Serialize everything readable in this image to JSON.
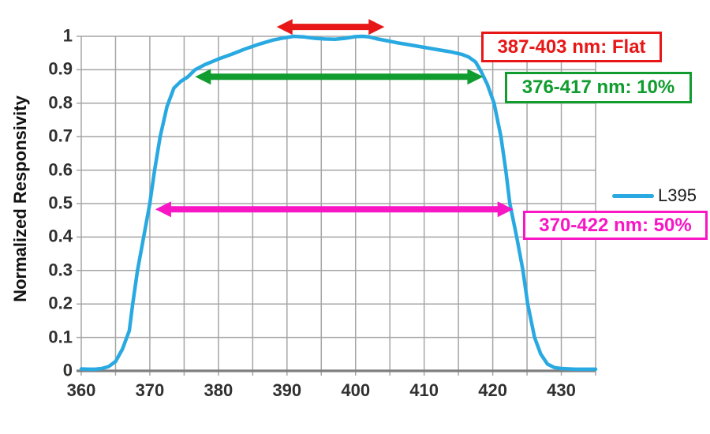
{
  "chart_data": {
    "type": "line",
    "title": "",
    "xlabel": "",
    "ylabel": "Normalized Responsivity",
    "xlim": [
      360,
      435
    ],
    "ylim": [
      0,
      1
    ],
    "grid": true,
    "x_grid_step": 5,
    "y_grid_step": 0.1,
    "x_ticks": [
      "360",
      "370",
      "380",
      "390",
      "400",
      "410",
      "420",
      "430"
    ],
    "y_ticks": [
      "1",
      "0.9",
      "0.8",
      "0.7",
      "0.6",
      "0.5",
      "0.4",
      "0.3",
      "0.2",
      "0.1",
      "0"
    ],
    "legend_position": "right-middle",
    "colors": {
      "grid": "#A5A5A5",
      "axis": "#7F7F7F",
      "background": "#FFFFFF",
      "tick_text": "#303030"
    },
    "series": [
      {
        "name": "L395",
        "color": "#29A9E1",
        "x": [
          360,
          361,
          362,
          363,
          364,
          365,
          366,
          367,
          367.5,
          368.2,
          369.1,
          370,
          370.7,
          371.5,
          372.5,
          373.5,
          374.5,
          375.5,
          376.6,
          378,
          380,
          382,
          384,
          386,
          388,
          389.5,
          391,
          392.5,
          394,
          395.5,
          397,
          398.5,
          400,
          401,
          402,
          403,
          404.5,
          406,
          408,
          410,
          412,
          414,
          415.5,
          416.5,
          417.5,
          418.3,
          419.2,
          420.2,
          421.2,
          421.9,
          422.5,
          423.5,
          424.4,
          425.1,
          426.1,
          427,
          428,
          429,
          430,
          432,
          435
        ],
        "y": [
          0.006,
          0.005,
          0.005,
          0.007,
          0.013,
          0.028,
          0.065,
          0.12,
          0.2,
          0.3,
          0.4,
          0.5,
          0.6,
          0.7,
          0.79,
          0.845,
          0.865,
          0.878,
          0.9,
          0.915,
          0.932,
          0.947,
          0.963,
          0.977,
          0.989,
          0.995,
          1.0,
          0.998,
          0.994,
          0.992,
          0.991,
          0.994,
          0.999,
          1.0,
          0.998,
          0.993,
          0.987,
          0.981,
          0.974,
          0.967,
          0.96,
          0.953,
          0.946,
          0.938,
          0.923,
          0.895,
          0.857,
          0.8,
          0.7,
          0.6,
          0.5,
          0.4,
          0.3,
          0.2,
          0.1,
          0.05,
          0.02,
          0.01,
          0.007,
          0.005,
          0.005
        ]
      }
    ],
    "annotations": [
      {
        "label": "387-403 nm: Flat",
        "range_nm": [
          387,
          403
        ],
        "arrow_x1": 388.5,
        "arrow_x2": 404.2,
        "arrow_y": 1.028,
        "color": "#E81717"
      },
      {
        "label": "376-417 nm: 10%",
        "range_nm": [
          376,
          417
        ],
        "arrow_x1": 376.6,
        "arrow_x2": 418.6,
        "arrow_y": 0.879,
        "color": "#109C2E"
      },
      {
        "label": "370-422 nm: 50%",
        "range_nm": [
          370,
          422
        ],
        "arrow_x1": 370.8,
        "arrow_x2": 423.0,
        "arrow_y": 0.483,
        "color": "#F816C5"
      }
    ]
  }
}
